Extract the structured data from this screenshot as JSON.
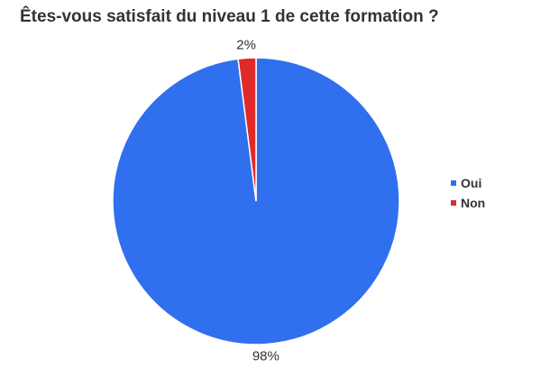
{
  "chart_data": {
    "type": "pie",
    "title": "Êtes-vous satisfait du niveau 1 de cette formation ?",
    "categories": [
      "Oui",
      "Non"
    ],
    "values": [
      98,
      2
    ],
    "data_labels": [
      "98%",
      "2%"
    ],
    "colors": [
      "#3070EE",
      "#E02A2A"
    ],
    "legend_position": "right"
  }
}
